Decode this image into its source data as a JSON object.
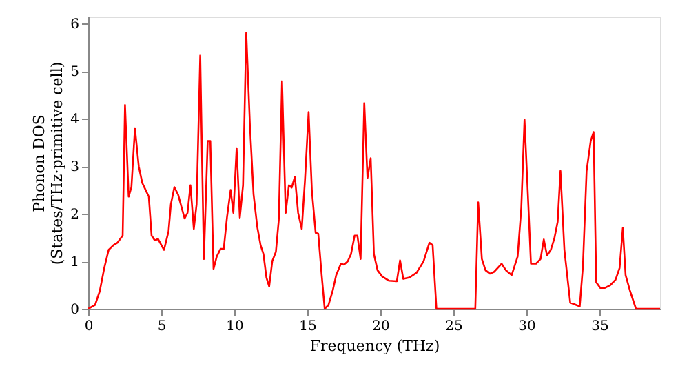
{
  "chart_data": {
    "type": "line",
    "xlabel": "Frequency (THz)",
    "ylabel": "Phonon DOS\n(States/THz·primitive cell)",
    "xlim": [
      0,
      39.15
    ],
    "xticks": [
      0,
      5,
      10,
      15,
      20,
      25,
      30,
      35
    ],
    "ylim": [
      0,
      6.15
    ],
    "yticks": [
      0,
      1,
      2,
      3,
      4,
      5,
      6
    ],
    "grid": false,
    "legend": false,
    "marker": "none",
    "line_style": "solid",
    "series": [
      {
        "color": "#ff0000",
        "x": [
          0,
          0.47,
          0.79,
          1.1,
          1.4,
          1.73,
          2.0,
          2.36,
          2.52,
          2.77,
          2.96,
          3.2,
          3.46,
          3.7,
          3.93,
          4.15,
          4.34,
          4.56,
          4.78,
          5.19,
          5.5,
          5.66,
          5.9,
          6.16,
          6.6,
          6.8,
          7.0,
          7.23,
          7.42,
          7.67,
          7.92,
          8.18,
          8.36,
          8.58,
          8.8,
          9.06,
          9.28,
          9.5,
          9.75,
          9.94,
          10.16,
          10.38,
          10.6,
          10.82,
          11.07,
          11.32,
          11.57,
          11.8,
          12.0,
          12.2,
          12.39,
          12.6,
          12.85,
          13.05,
          13.27,
          13.52,
          13.74,
          13.93,
          14.15,
          14.37,
          14.62,
          14.84,
          15.09,
          15.31,
          15.57,
          15.75,
          15.97,
          16.19,
          16.45,
          16.73,
          16.98,
          17.3,
          17.52,
          17.77,
          17.99,
          18.24,
          18.43,
          18.65,
          18.9,
          19.12,
          19.34,
          19.56,
          19.81,
          20.13,
          20.6,
          21.13,
          21.35,
          21.57,
          22.0,
          22.48,
          22.96,
          23.36,
          23.58,
          23.84,
          26.5,
          26.7,
          26.95,
          27.2,
          27.5,
          27.8,
          28.3,
          28.6,
          28.99,
          29.4,
          29.65,
          29.87,
          30.1,
          30.31,
          30.66,
          30.97,
          31.19,
          31.41,
          31.67,
          31.92,
          32.14,
          32.33,
          32.6,
          33.0,
          33.65,
          33.87,
          34.12,
          34.4,
          34.6,
          34.78,
          35.06,
          35.38,
          35.75,
          36.1,
          36.38,
          36.6,
          36.79,
          37.1,
          37.5,
          39.15
        ],
        "values": [
          0,
          0.08,
          0.37,
          0.86,
          1.24,
          1.34,
          1.39,
          1.54,
          4.29,
          2.36,
          2.56,
          3.8,
          3.0,
          2.65,
          2.5,
          2.36,
          1.54,
          1.44,
          1.47,
          1.24,
          1.63,
          2.2,
          2.56,
          2.4,
          1.9,
          2.02,
          2.6,
          1.68,
          2.2,
          5.33,
          1.05,
          3.53,
          3.53,
          0.84,
          1.1,
          1.26,
          1.26,
          1.92,
          2.5,
          2.02,
          3.38,
          1.92,
          2.6,
          5.81,
          3.87,
          2.41,
          1.73,
          1.34,
          1.15,
          0.66,
          0.47,
          1.0,
          1.2,
          1.88,
          4.79,
          2.02,
          2.6,
          2.55,
          2.78,
          2.02,
          1.68,
          2.7,
          4.14,
          2.5,
          1.6,
          1.58,
          0.76,
          0,
          0.08,
          0.37,
          0.71,
          0.95,
          0.93,
          1.0,
          1.15,
          1.54,
          1.54,
          1.05,
          4.33,
          2.75,
          3.17,
          1.15,
          0.81,
          0.68,
          0.59,
          0.58,
          1.02,
          0.63,
          0.66,
          0.76,
          1.0,
          1.39,
          1.34,
          0,
          0,
          2.24,
          1.05,
          0.81,
          0.74,
          0.78,
          0.95,
          0.81,
          0.71,
          1.1,
          2.12,
          3.98,
          2.41,
          0.95,
          0.95,
          1.05,
          1.46,
          1.12,
          1.24,
          1.49,
          1.83,
          2.9,
          1.24,
          0.13,
          0.05,
          0.9,
          2.9,
          3.53,
          3.72,
          0.56,
          0.44,
          0.44,
          0.5,
          0.61,
          0.86,
          1.7,
          0.71,
          0.37,
          0,
          0
        ]
      }
    ]
  }
}
